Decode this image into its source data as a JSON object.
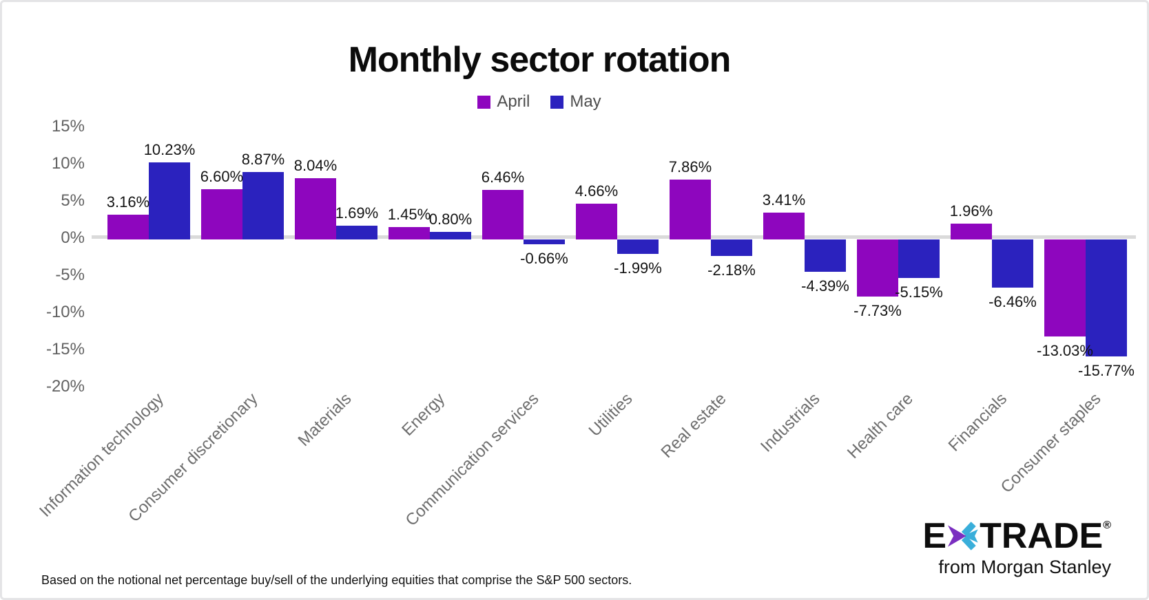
{
  "title": "Monthly sector rotation",
  "legend": [
    {
      "label": "April",
      "color": "#8e06be"
    },
    {
      "label": "May",
      "color": "#2b22be"
    }
  ],
  "footnote": "Based on the notional net percentage buy/sell of the underlying equities that comprise the S&P 500 sectors.",
  "logo": {
    "brand_left": "E",
    "brand_right": "TRADE",
    "registered": "®",
    "tagline": "from Morgan Stanley",
    "star_purple": "#7a2ec0",
    "star_cyan": "#39aeda"
  },
  "chart_data": {
    "type": "bar",
    "title": "Monthly sector rotation",
    "categories": [
      "Information technology",
      "Consumer discretionary",
      "Materials",
      "Energy",
      "Communication services",
      "Utilities",
      "Real estate",
      "Industrials",
      "Health care",
      "Financials",
      "Consumer staples"
    ],
    "series": [
      {
        "name": "April",
        "color": "#8e06be",
        "values": [
          3.16,
          6.6,
          8.04,
          1.45,
          6.46,
          4.66,
          7.86,
          3.41,
          -7.73,
          1.96,
          -13.03
        ]
      },
      {
        "name": "May",
        "color": "#2b22be",
        "values": [
          10.23,
          8.87,
          1.69,
          0.8,
          -0.66,
          -1.99,
          -2.18,
          -4.39,
          -5.15,
          -6.46,
          -15.77
        ]
      }
    ],
    "y_ticks": [
      "15%",
      "10%",
      "5%",
      "0%",
      "-5%",
      "-10%",
      "-15%",
      "-20%"
    ],
    "ylim": [
      -20,
      15
    ],
    "xlabel": "",
    "ylabel": "",
    "grid": "zero-line-only",
    "legend_position": "top",
    "value_labels": "on-bars",
    "zero_line_color": "#dadada"
  }
}
